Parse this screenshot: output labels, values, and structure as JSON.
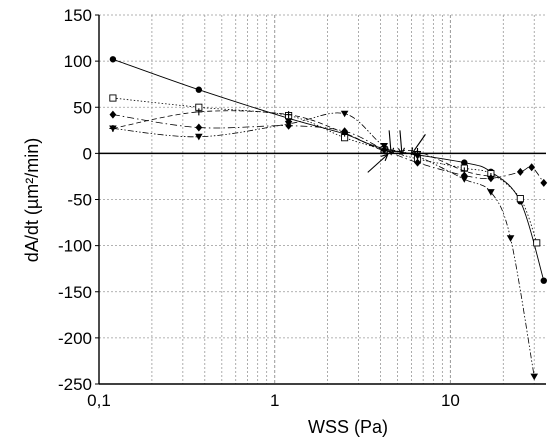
{
  "chart_data": {
    "type": "scatter",
    "xscale": "log",
    "xlim": [
      0.1,
      35
    ],
    "ylim": [
      -250,
      150
    ],
    "xlabel": "WSS (Pa)",
    "ylabel": "dA/dt (µm²/min)",
    "grid": true,
    "legend": "none",
    "x_ticks": [
      {
        "value": 0.1,
        "label": "0,1"
      },
      {
        "value": 1,
        "label": "1"
      },
      {
        "value": 10,
        "label": "10"
      }
    ],
    "y_ticks": [
      {
        "value": 150,
        "label": "150"
      },
      {
        "value": 100,
        "label": "100"
      },
      {
        "value": 50,
        "label": "50"
      },
      {
        "value": 0,
        "label": "0"
      },
      {
        "value": -50,
        "label": "-50"
      },
      {
        "value": -100,
        "label": "-100"
      },
      {
        "value": -150,
        "label": "-150"
      },
      {
        "value": -200,
        "label": "-200"
      },
      {
        "value": -250,
        "label": "-250"
      }
    ],
    "series": [
      {
        "marker": "circle",
        "line": "solid",
        "points": [
          [
            0.12,
            102
          ],
          [
            0.37,
            69
          ],
          [
            1.2,
            38
          ],
          [
            2.5,
            21
          ],
          [
            4.2,
            5
          ],
          [
            12,
            -10
          ],
          [
            17,
            -20
          ],
          [
            25,
            -52
          ],
          [
            34,
            -138
          ]
        ]
      },
      {
        "marker": "square-open",
        "line": "dotted",
        "points": [
          [
            0.12,
            60
          ],
          [
            0.37,
            50
          ],
          [
            1.2,
            41
          ],
          [
            2.5,
            17
          ],
          [
            4.2,
            4
          ],
          [
            6.5,
            -6
          ],
          [
            12,
            -16
          ],
          [
            17,
            -22
          ],
          [
            25,
            -49
          ],
          [
            31,
            -97
          ]
        ]
      },
      {
        "marker": "diamond",
        "line": "dash-dot",
        "points": [
          [
            0.12,
            42
          ],
          [
            0.37,
            28
          ],
          [
            1.2,
            30
          ],
          [
            2.5,
            24
          ],
          [
            4.2,
            4
          ],
          [
            6.5,
            -10
          ],
          [
            12,
            -24
          ],
          [
            17,
            -27
          ],
          [
            25,
            -20
          ],
          [
            29,
            -15
          ],
          [
            34,
            -32
          ]
        ]
      },
      {
        "marker": "triangle-down",
        "line": "dash-dot-dot",
        "points": [
          [
            0.12,
            27
          ],
          [
            0.37,
            18
          ],
          [
            1.2,
            32
          ],
          [
            2.5,
            43
          ],
          [
            4.2,
            8
          ],
          [
            6.5,
            -3
          ],
          [
            12,
            -28
          ],
          [
            17,
            -42
          ],
          [
            22,
            -92
          ],
          [
            30,
            -242
          ]
        ]
      },
      {
        "marker": "cross",
        "line": "dashed",
        "points": [
          [
            0.12,
            27
          ],
          [
            0.37,
            45
          ],
          [
            1.2,
            42
          ],
          [
            2.5,
            22
          ],
          [
            4.2,
            3
          ],
          [
            6.5,
            2
          ],
          [
            12,
            -19
          ],
          [
            17,
            -25
          ]
        ]
      }
    ],
    "arrows": [
      {
        "x": 4.4,
        "y": 0,
        "direction": "from-lower-left"
      },
      {
        "x": 4.6,
        "y": 0,
        "direction": "from-top"
      },
      {
        "x": 5.3,
        "y": 0,
        "direction": "from-top"
      },
      {
        "x": 6.0,
        "y": 0,
        "direction": "from-upper-right"
      }
    ],
    "colors": {
      "marks": "#000000",
      "grid": "#999999",
      "background": "#ffffff"
    }
  }
}
